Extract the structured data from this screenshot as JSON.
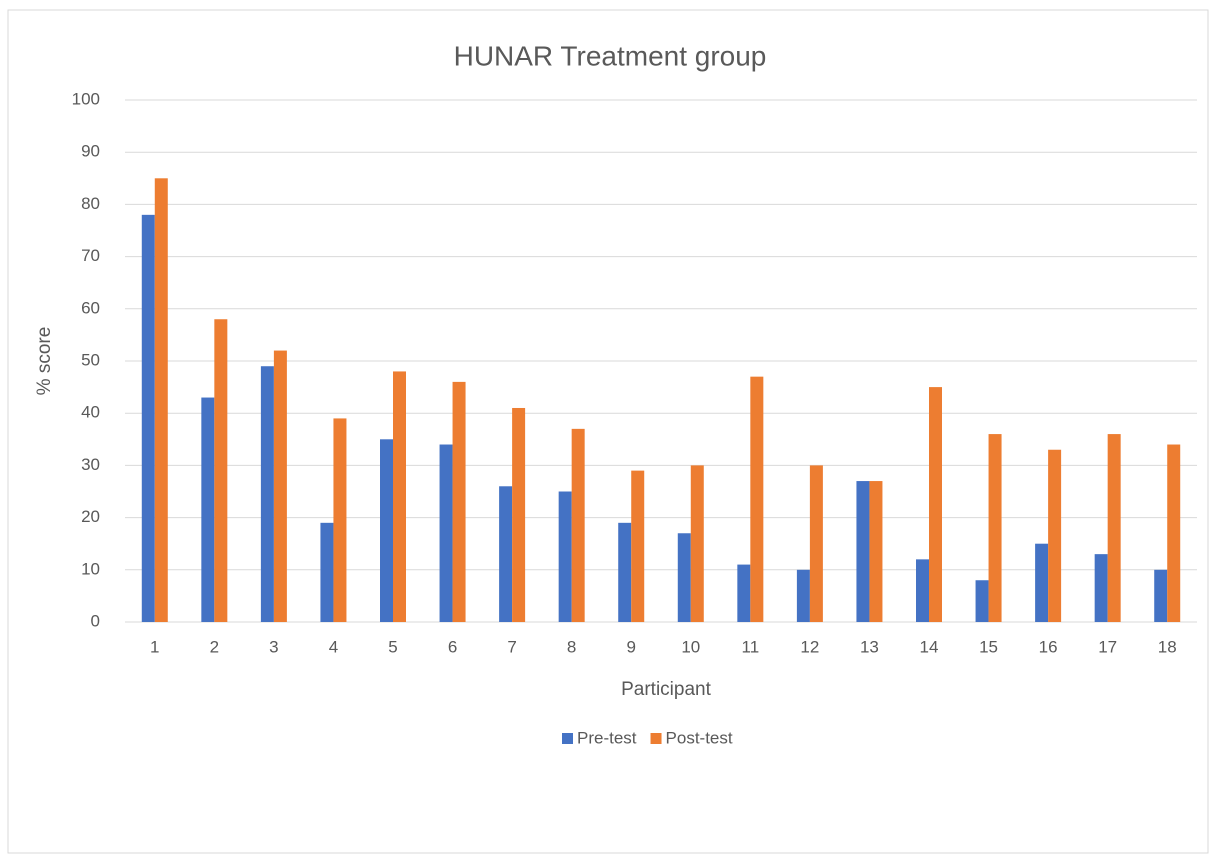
{
  "chart_data": {
    "type": "bar",
    "title": "HUNAR Treatment group",
    "x_label": "Participant",
    "y_label": "% score",
    "categories": [
      "1",
      "2",
      "3",
      "4",
      "5",
      "6",
      "7",
      "8",
      "9",
      "10",
      "11",
      "12",
      "13",
      "14",
      "15",
      "16",
      "17",
      "18"
    ],
    "series": [
      {
        "name": "Pre-test",
        "color": "#4472c4",
        "values": [
          78,
          43,
          49,
          19,
          35,
          34,
          26,
          25,
          19,
          17,
          11,
          10,
          27,
          12,
          8,
          15,
          13,
          10
        ]
      },
      {
        "name": "Post-test",
        "color": "#ed7d31",
        "values": [
          85,
          58,
          52,
          39,
          48,
          46,
          41,
          37,
          29,
          30,
          47,
          30,
          27,
          45,
          36,
          33,
          36,
          34
        ]
      }
    ],
    "ylim": [
      0,
      100
    ],
    "yticks": [
      0,
      10,
      20,
      30,
      40,
      50,
      60,
      70,
      80,
      90,
      100
    ],
    "grid": true,
    "legend": "bottom"
  }
}
